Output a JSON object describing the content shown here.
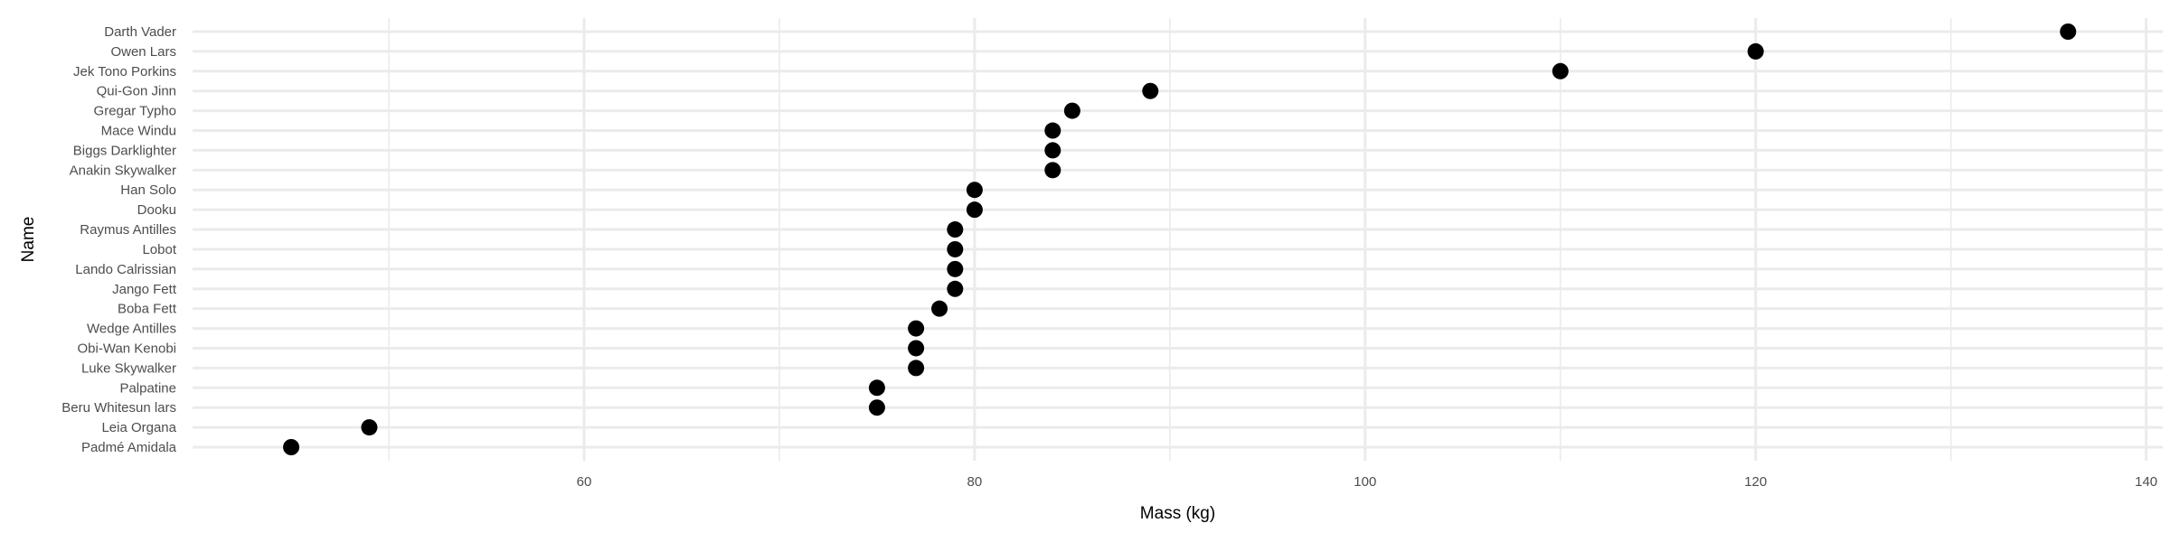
{
  "chart_data": {
    "type": "scatter",
    "xlabel": "Mass (kg)",
    "ylabel": "Name",
    "xlim": [
      39.95,
      140.85
    ],
    "x_major_ticks": [
      60,
      80,
      100,
      120,
      140
    ],
    "x_minor_ticks": [
      50,
      70,
      90,
      110,
      130
    ],
    "grid": true,
    "legend": "none",
    "point_color": "#000000",
    "categories": [
      "Padmé Amidala",
      "Leia Organa",
      "Beru Whitesun lars",
      "Palpatine",
      "Luke Skywalker",
      "Obi-Wan Kenobi",
      "Wedge Antilles",
      "Boba Fett",
      "Jango Fett",
      "Lando Calrissian",
      "Lobot",
      "Raymus Antilles",
      "Dooku",
      "Han Solo",
      "Anakin Skywalker",
      "Biggs Darklighter",
      "Mace Windu",
      "Gregar Typho",
      "Qui-Gon Jinn",
      "Jek Tono Porkins",
      "Owen Lars",
      "Darth Vader"
    ],
    "x": [
      45,
      49,
      75,
      75,
      77,
      77,
      77,
      78.2,
      79,
      79,
      79,
      79,
      80,
      80,
      84,
      84,
      84,
      85,
      89,
      110,
      120,
      136
    ]
  }
}
